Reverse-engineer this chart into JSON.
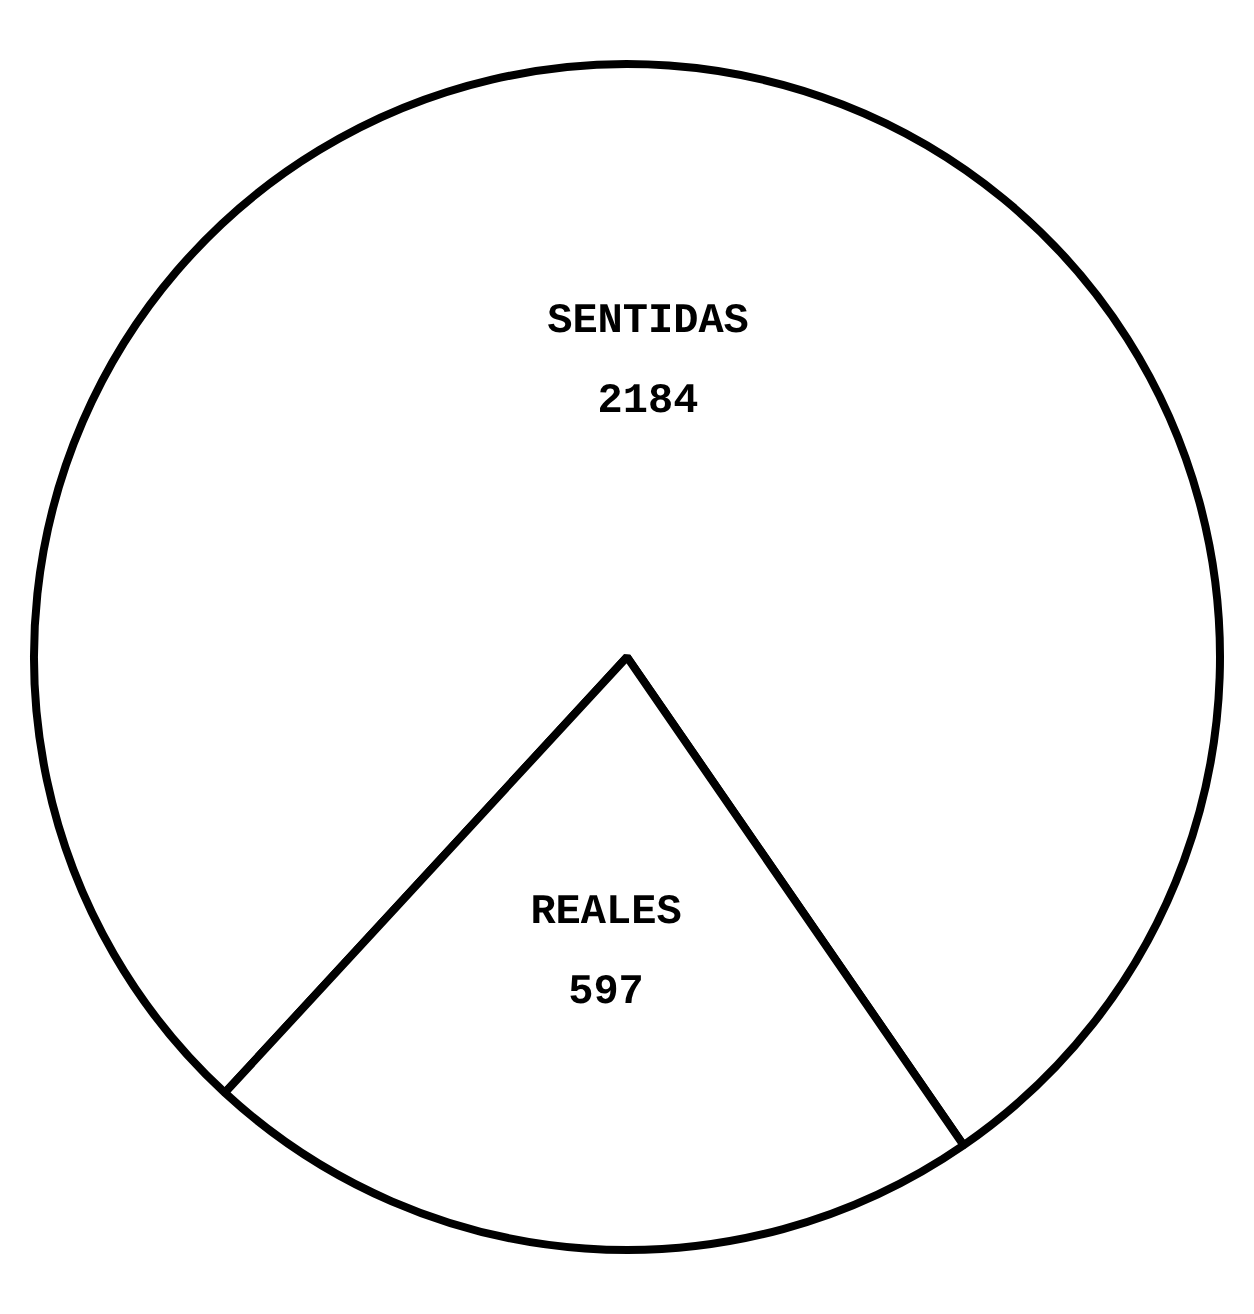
{
  "chart_data": {
    "type": "pie",
    "categories": [
      "SENTIDAS",
      "REALES"
    ],
    "values": [
      2184,
      597
    ],
    "colors": [
      "#ffffff",
      "#ffffff"
    ],
    "data_labels": true,
    "legend": false
  }
}
